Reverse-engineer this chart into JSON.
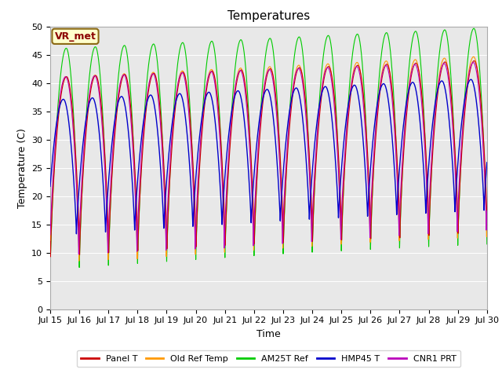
{
  "title": "Temperatures",
  "xlabel": "Time",
  "ylabel": "Temperature (C)",
  "ylim": [
    0,
    50
  ],
  "annotation": "VR_met",
  "legend_labels": [
    "Panel T",
    "Old Ref Temp",
    "AM25T Ref",
    "HMP45 T",
    "CNR1 PRT"
  ],
  "line_colors": [
    "#cc0000",
    "#ff9900",
    "#00cc00",
    "#0000cc",
    "#bb00bb"
  ],
  "xtick_labels": [
    "Jul 15",
    "Jul 16",
    "Jul 17",
    "Jul 18",
    "Jul 19",
    "Jul 20",
    "Jul 21",
    "Jul 22",
    "Jul 23",
    "Jul 24",
    "Jul 25",
    "Jul 26",
    "Jul 27",
    "Jul 28",
    "Jul 29",
    "Jul 30"
  ],
  "background_color": "#e8e8e8",
  "title_fontsize": 11,
  "axis_fontsize": 9,
  "tick_fontsize": 8,
  "n_days": 15
}
